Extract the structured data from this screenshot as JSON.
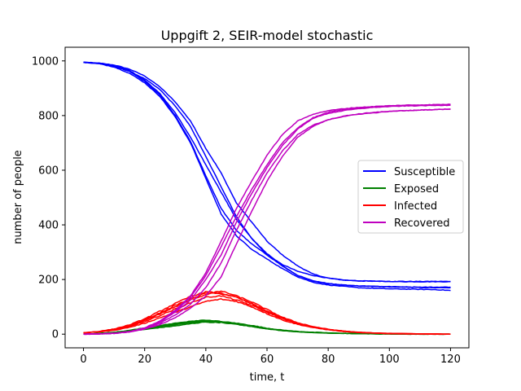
{
  "chart_data": {
    "type": "line",
    "title": "Uppgift 2, SEIR-model stochastic",
    "xlabel": "time, t",
    "ylabel": "number of people",
    "xlim": [
      -6,
      126
    ],
    "ylim": [
      -50,
      1050
    ],
    "x_ticks": [
      0,
      20,
      40,
      60,
      80,
      100,
      120
    ],
    "y_ticks": [
      0,
      200,
      400,
      600,
      800,
      1000
    ],
    "grid": false,
    "legend_position": "center-right",
    "runs": 5,
    "x": [
      0,
      5,
      10,
      15,
      20,
      25,
      30,
      35,
      40,
      45,
      50,
      55,
      60,
      65,
      70,
      75,
      80,
      85,
      90,
      95,
      100,
      105,
      110,
      115,
      120
    ],
    "series": [
      {
        "name": "Susceptible",
        "color": "#0000ff",
        "runs": [
          [
            995,
            992,
            985,
            970,
            945,
            905,
            850,
            780,
            680,
            590,
            480,
            410,
            340,
            290,
            250,
            220,
            205,
            198,
            195,
            194,
            193,
            193,
            193,
            193,
            193
          ],
          [
            995,
            990,
            980,
            962,
            935,
            895,
            835,
            760,
            650,
            540,
            430,
            350,
            290,
            255,
            230,
            215,
            205,
            198,
            195,
            194,
            193,
            192,
            192,
            192,
            192
          ],
          [
            995,
            991,
            983,
            965,
            930,
            880,
            810,
            720,
            620,
            520,
            420,
            350,
            295,
            250,
            215,
            195,
            185,
            180,
            177,
            175,
            173,
            172,
            171,
            170,
            170
          ],
          [
            995,
            991,
            982,
            962,
            925,
            875,
            800,
            705,
            580,
            460,
            380,
            330,
            290,
            250,
            215,
            195,
            185,
            180,
            177,
            175,
            174,
            173,
            172,
            172,
            172
          ],
          [
            995,
            990,
            978,
            955,
            920,
            870,
            795,
            700,
            570,
            440,
            360,
            310,
            275,
            240,
            210,
            190,
            180,
            175,
            170,
            168,
            166,
            165,
            164,
            163,
            160
          ]
        ]
      },
      {
        "name": "Exposed",
        "color": "#008000",
        "runs": [
          [
            0,
            2,
            5,
            10,
            17,
            24,
            30,
            38,
            45,
            45,
            40,
            32,
            22,
            15,
            10,
            7,
            5,
            3,
            2,
            1,
            1,
            0,
            0,
            0,
            0
          ],
          [
            0,
            2,
            6,
            12,
            20,
            28,
            36,
            42,
            48,
            46,
            40,
            30,
            20,
            14,
            9,
            6,
            4,
            3,
            2,
            1,
            1,
            0,
            0,
            0,
            0
          ],
          [
            0,
            2,
            6,
            12,
            20,
            28,
            38,
            45,
            50,
            45,
            38,
            28,
            20,
            14,
            9,
            6,
            4,
            3,
            2,
            1,
            1,
            0,
            0,
            0,
            0
          ],
          [
            0,
            2,
            5,
            11,
            19,
            27,
            35,
            42,
            44,
            42,
            36,
            28,
            20,
            13,
            9,
            6,
            4,
            3,
            2,
            1,
            1,
            0,
            0,
            0,
            0
          ],
          [
            0,
            3,
            7,
            14,
            23,
            32,
            40,
            48,
            52,
            46,
            38,
            28,
            19,
            13,
            9,
            6,
            4,
            3,
            2,
            1,
            1,
            0,
            0,
            0,
            0
          ]
        ]
      },
      {
        "name": "Infected",
        "color": "#ff0000",
        "runs": [
          [
            5,
            8,
            14,
            25,
            40,
            60,
            80,
            100,
            120,
            128,
            120,
            100,
            75,
            52,
            36,
            24,
            16,
            10,
            6,
            4,
            2,
            1,
            1,
            0,
            0
          ],
          [
            5,
            9,
            16,
            28,
            46,
            68,
            92,
            115,
            135,
            140,
            125,
            105,
            80,
            57,
            38,
            25,
            16,
            10,
            6,
            4,
            2,
            1,
            1,
            0,
            0
          ],
          [
            5,
            9,
            18,
            32,
            52,
            78,
            105,
            130,
            150,
            148,
            135,
            110,
            82,
            58,
            40,
            26,
            17,
            11,
            7,
            4,
            3,
            2,
            1,
            1,
            0
          ],
          [
            5,
            9,
            17,
            30,
            50,
            74,
            100,
            125,
            145,
            158,
            140,
            118,
            90,
            62,
            42,
            28,
            18,
            11,
            7,
            4,
            3,
            2,
            1,
            1,
            0
          ],
          [
            5,
            10,
            19,
            34,
            56,
            84,
            112,
            138,
            155,
            150,
            135,
            112,
            85,
            60,
            40,
            26,
            17,
            11,
            7,
            4,
            3,
            2,
            1,
            1,
            0
          ]
        ]
      },
      {
        "name": "Recovered",
        "color": "#bf00bf",
        "runs": [
          [
            0,
            1,
            3,
            8,
            18,
            35,
            60,
            95,
            140,
            210,
            330,
            450,
            560,
            650,
            720,
            760,
            785,
            797,
            805,
            810,
            815,
            818,
            820,
            822,
            824
          ],
          [
            0,
            1,
            3,
            8,
            20,
            40,
            70,
            110,
            170,
            260,
            380,
            490,
            590,
            670,
            730,
            765,
            785,
            798,
            806,
            812,
            815,
            818,
            820,
            822,
            823
          ],
          [
            0,
            1,
            3,
            9,
            22,
            45,
            80,
            125,
            200,
            290,
            410,
            515,
            610,
            690,
            750,
            790,
            808,
            818,
            825,
            830,
            833,
            835,
            836,
            837,
            838
          ],
          [
            0,
            1,
            3,
            9,
            22,
            47,
            85,
            135,
            215,
            320,
            430,
            530,
            620,
            700,
            755,
            792,
            812,
            822,
            828,
            832,
            834,
            836,
            837,
            838,
            838
          ],
          [
            0,
            1,
            3,
            9,
            23,
            48,
            88,
            140,
            225,
            340,
            460,
            560,
            655,
            730,
            780,
            805,
            818,
            825,
            830,
            833,
            836,
            838,
            839,
            840,
            841
          ]
        ]
      }
    ]
  }
}
